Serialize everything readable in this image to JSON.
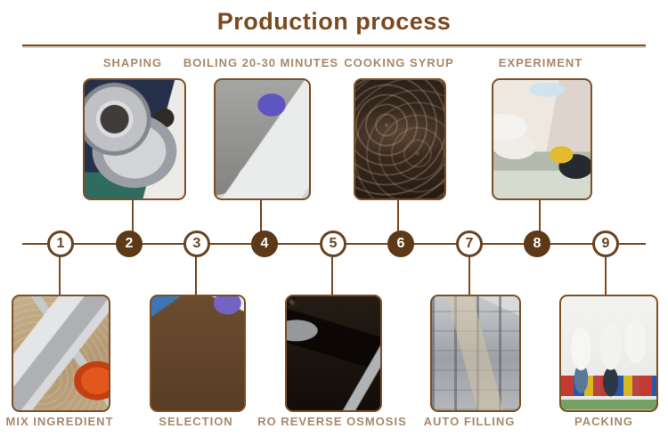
{
  "title": "Production process",
  "colors": {
    "accent_brown": "#7a4a22",
    "title_brown": "#7b4a1e",
    "circle_fill_brown": "#5d3917",
    "label_tan": "#a8896a"
  },
  "steps": [
    {
      "number": "1",
      "label": "MIX INGREDIENT",
      "side": "bottom",
      "photo": "mix-ingredient"
    },
    {
      "number": "2",
      "label": "SHAPING",
      "side": "top",
      "photo": "shaping"
    },
    {
      "number": "3",
      "label": "SELECTION",
      "side": "bottom",
      "photo": "selection"
    },
    {
      "number": "4",
      "label": "BOILING 20-30 MINUTES",
      "side": "top",
      "photo": "boiling"
    },
    {
      "number": "5",
      "label": "RO REVERSE OSMOSIS",
      "side": "bottom",
      "photo": "ro-reverse-osmosis"
    },
    {
      "number": "6",
      "label": "COOKING SYRUP",
      "side": "top",
      "photo": "cooking-syrup"
    },
    {
      "number": "7",
      "label": "AUTO FILLING",
      "side": "bottom",
      "photo": "auto-filling"
    },
    {
      "number": "8",
      "label": "EXPERIMENT",
      "side": "top",
      "photo": "experiment"
    },
    {
      "number": "9",
      "label": "PACKING",
      "side": "bottom",
      "photo": "packing"
    }
  ]
}
